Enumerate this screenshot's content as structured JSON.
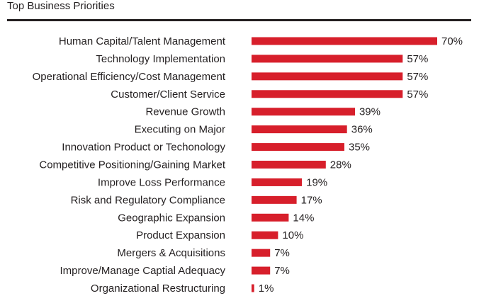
{
  "chart_data": {
    "type": "bar",
    "orientation": "horizontal",
    "title": "Top Business Priorities",
    "categories": [
      "Human Capital/Talent Management",
      "Technology Implementation",
      "Operational Efficiency/Cost Management",
      "Customer/Client Service",
      "Revenue Growth",
      "Executing on Major",
      "Innovation Product or Techonology",
      "Competitive Positioning/Gaining Market",
      "Improve Loss Performance",
      "Risk and Regulatory Compliance",
      "Geographic Expansion",
      "Product Expansion",
      "Mergers & Acquisitions",
      "Improve/Manage Captial Adequacy",
      "Organizational Restructuring"
    ],
    "values": [
      70,
      57,
      57,
      57,
      39,
      36,
      35,
      28,
      19,
      17,
      14,
      10,
      7,
      7,
      1
    ],
    "value_labels": [
      "70%",
      "57%",
      "57%",
      "57%",
      "39%",
      "36%",
      "35%",
      "28%",
      "19%",
      "17%",
      "14%",
      "10%",
      "7%",
      "7%",
      "1%"
    ],
    "unit": "%",
    "xlim": [
      0,
      70
    ],
    "bar_color": "#d71f2b",
    "text_color": "#231f20",
    "grid": false,
    "legend": "none"
  }
}
